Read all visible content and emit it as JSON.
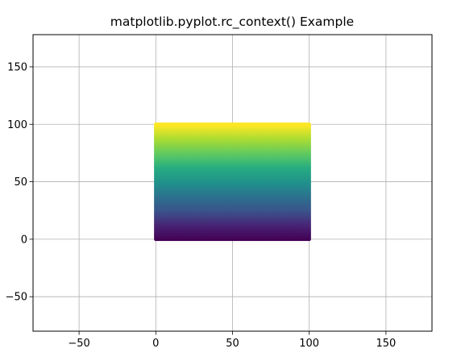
{
  "chart_data": {
    "type": "scatter",
    "title": "matplotlib.pyplot.rc_context() Example",
    "xlabel": "",
    "ylabel": "",
    "xlim": [
      -80,
      180
    ],
    "ylim": [
      -80,
      178
    ],
    "grid": true,
    "x_ticks": [
      -50,
      0,
      50,
      100,
      150
    ],
    "y_ticks": [
      -50,
      0,
      50,
      100,
      150
    ],
    "x_tick_labels": [
      "−50",
      "0",
      "50",
      "100",
      "150"
    ],
    "y_tick_labels": [
      "−50",
      "0",
      "50",
      "100",
      "150"
    ],
    "colormap": "viridis",
    "color_by": "y",
    "series": [
      {
        "x_range": [
          0,
          100
        ],
        "y_range": [
          0,
          100
        ],
        "points_per_axis": 100,
        "marker": "circle"
      }
    ]
  }
}
